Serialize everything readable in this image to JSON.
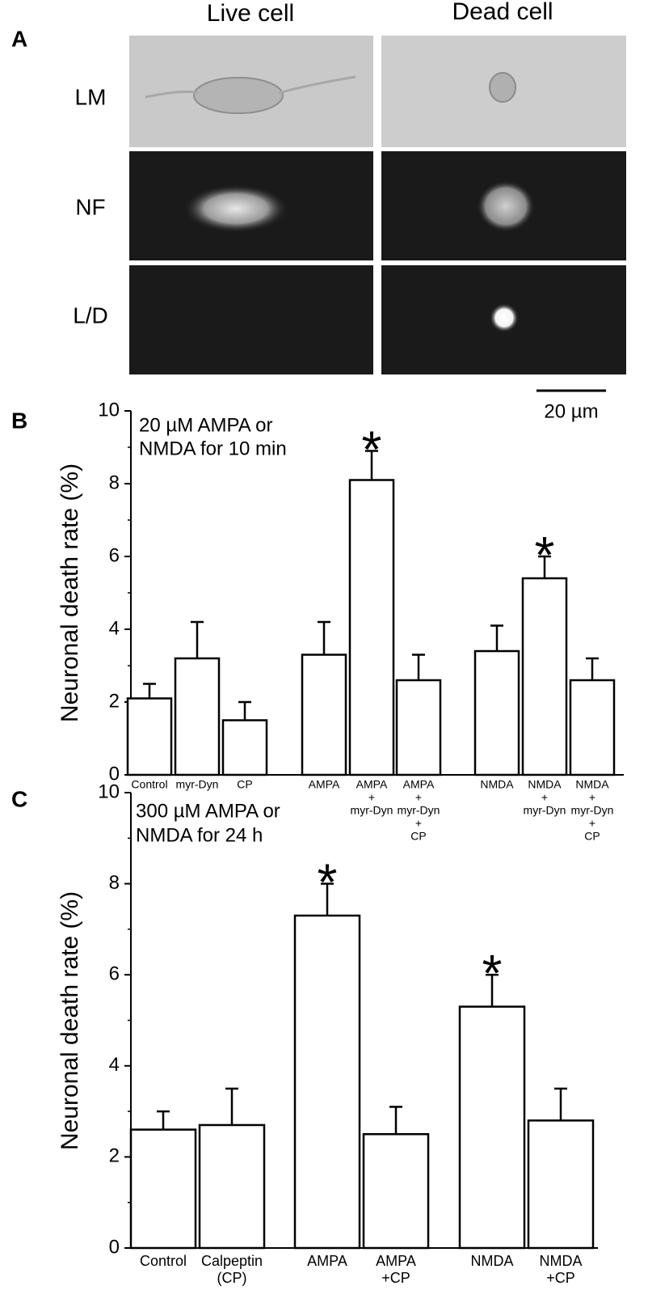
{
  "panel_a": {
    "label": "A",
    "columns": [
      "Live cell",
      "Dead cell"
    ],
    "rows": [
      "LM",
      "NF",
      "L/D"
    ],
    "scale_bar": "20 µm"
  },
  "chart_data": [
    {
      "type": "bar",
      "panel_label": "B",
      "annotation": [
        "20 µM AMPA or",
        "NMDA for 10 min"
      ],
      "ylabel": "Neuronal death rate (%)",
      "categories": [
        [
          "Control"
        ],
        [
          "myr-Dyn"
        ],
        [
          "CP"
        ],
        [
          "AMPA"
        ],
        [
          "AMPA",
          "+",
          "myr-Dyn"
        ],
        [
          "AMPA",
          "+",
          "myr-Dyn",
          "+",
          "CP"
        ],
        [
          "NMDA"
        ],
        [
          "NMDA",
          "+",
          "myr-Dyn"
        ],
        [
          "NMDA",
          "+",
          "myr-Dyn",
          "+",
          "CP"
        ]
      ],
      "values": [
        2.1,
        3.2,
        1.5,
        3.3,
        8.1,
        2.6,
        3.4,
        5.4,
        2.6
      ],
      "errors": [
        0.4,
        1.0,
        0.5,
        0.9,
        0.8,
        0.7,
        0.7,
        0.6,
        0.6
      ],
      "significance": [
        null,
        null,
        null,
        null,
        "*",
        null,
        null,
        "*",
        null
      ],
      "color": "#ffffff",
      "ylim": [
        0,
        10
      ],
      "yticks": [
        0,
        2,
        4,
        6,
        8,
        10
      ],
      "yminorticks": [
        1,
        3,
        5,
        7,
        9
      ]
    },
    {
      "type": "bar",
      "panel_label": "C",
      "annotation": [
        "300 µM AMPA or",
        "NMDA for 24 h"
      ],
      "ylabel": "Neuronal death rate (%)",
      "categories": [
        [
          "Control"
        ],
        [
          "Calpeptin",
          "(CP)"
        ],
        [
          "AMPA"
        ],
        [
          "AMPA",
          "+CP"
        ],
        [
          "NMDA"
        ],
        [
          "NMDA",
          "+CP"
        ]
      ],
      "values": [
        2.6,
        2.7,
        7.3,
        2.5,
        5.3,
        2.8
      ],
      "errors": [
        0.4,
        0.8,
        0.7,
        0.6,
        0.7,
        0.7
      ],
      "significance": [
        null,
        null,
        "*",
        null,
        "*",
        null
      ],
      "color": "#ffffff",
      "ylim": [
        0,
        10
      ],
      "yticks": [
        0,
        2,
        4,
        6,
        8,
        10
      ],
      "yminorticks": [
        1,
        3,
        5,
        7,
        9
      ]
    }
  ]
}
